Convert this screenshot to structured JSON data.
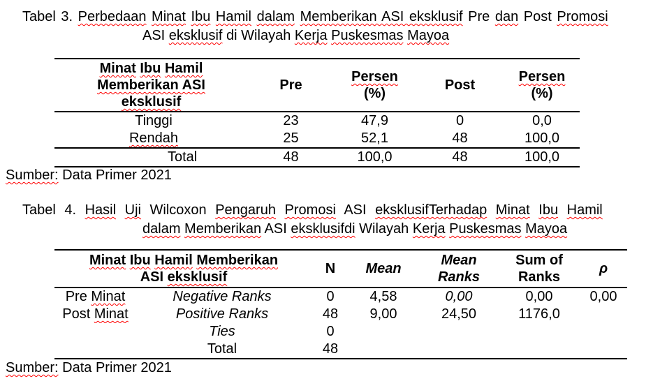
{
  "page": {
    "background": "#ffffff",
    "text_color": "#000000",
    "squiggle_color": "#ff0000"
  },
  "caption_table3": {
    "line1": [
      {
        "t": "Tabel 3. "
      },
      {
        "t": "Perbedaan",
        "sq": true
      },
      {
        "t": " "
      },
      {
        "t": "Minat",
        "sq": true
      },
      {
        "t": " "
      },
      {
        "t": "Ibu",
        "sq": true
      },
      {
        "t": " "
      },
      {
        "t": "Hamil",
        "sq": true
      },
      {
        "t": " "
      },
      {
        "t": "dalam",
        "sq": true
      },
      {
        "t": " "
      },
      {
        "t": "Memberikan ASI eksklusif",
        "sq": true
      },
      {
        "t": " Pre "
      },
      {
        "t": "dan",
        "sq": true
      },
      {
        "t": " Post "
      },
      {
        "t": "Promosi",
        "sq": true
      }
    ],
    "line2": [
      {
        "t": "ASI "
      },
      {
        "t": "eksklusif",
        "sq": true
      },
      {
        "t": " di Wilayah "
      },
      {
        "t": "Kerja",
        "sq": true
      },
      {
        "t": " "
      },
      {
        "t": "Puskesmas",
        "sq": true
      },
      {
        "t": " "
      },
      {
        "t": "Mayoa",
        "sq": true
      }
    ]
  },
  "table3": {
    "header": {
      "col1_line1": [
        {
          "t": "Minat",
          "sq": true
        },
        {
          "t": " "
        },
        {
          "t": "Ibu",
          "sq": true
        },
        {
          "t": " "
        },
        {
          "t": "Hamil",
          "sq": true
        }
      ],
      "col1_line2": [
        {
          "t": "Memberikan ASI",
          "sq": true
        }
      ],
      "col1_line3": [
        {
          "t": "eksklusif",
          "sq": true
        }
      ],
      "pre": "Pre",
      "persen_line1": [
        {
          "t": "Persen",
          "sq": true
        }
      ],
      "persen_line2": "(%)",
      "post": "Post"
    },
    "rows": [
      {
        "label": [
          {
            "t": "Tinggi"
          }
        ],
        "pre": "23",
        "persen_pre": "47,9",
        "post": "0",
        "persen_post": "0,0"
      },
      {
        "label": [
          {
            "t": "Rendah",
            "sq": true
          }
        ],
        "pre": "25",
        "persen_pre": "52,1",
        "post": "48",
        "persen_post": "100,0"
      }
    ],
    "total_row": {
      "label": "Total",
      "pre": "48",
      "persen_pre": "100,0",
      "post": "48",
      "persen_post": "100,0"
    },
    "source": [
      {
        "t": "Sumber:",
        "sq": true
      },
      {
        "t": " Data Primer 2021"
      }
    ]
  },
  "caption_table4": {
    "line1": [
      {
        "t": "Tabel 4. "
      },
      {
        "t": "Hasil",
        "sq": true
      },
      {
        "t": " "
      },
      {
        "t": "Uji",
        "sq": true
      },
      {
        "t": " Wilcoxon "
      },
      {
        "t": "Pengaruh",
        "sq": true
      },
      {
        "t": " "
      },
      {
        "t": "Promosi",
        "sq": true
      },
      {
        "t": " ASI "
      },
      {
        "t": "eksklusifTerhadap",
        "sq": true
      },
      {
        "t": " "
      },
      {
        "t": "Minat",
        "sq": true
      },
      {
        "t": " "
      },
      {
        "t": "Ibu",
        "sq": true
      },
      {
        "t": " "
      },
      {
        "t": "Hamil",
        "sq": true
      }
    ],
    "line2": [
      {
        "t": "dalam",
        "sq": true
      },
      {
        "t": " "
      },
      {
        "t": "Memberikan",
        "sq": true
      },
      {
        "t": " ASI "
      },
      {
        "t": "eksklusifdi",
        "sq": true
      },
      {
        "t": " Wilayah "
      },
      {
        "t": "Kerja",
        "sq": true
      },
      {
        "t": " "
      },
      {
        "t": "Puskesmas",
        "sq": true
      },
      {
        "t": " "
      },
      {
        "t": "Mayoa",
        "sq": true
      }
    ]
  },
  "table4": {
    "header": {
      "col1_line1": [
        {
          "t": "Minat",
          "sq": true
        },
        {
          "t": " "
        },
        {
          "t": "Ibu",
          "sq": true
        },
        {
          "t": " "
        },
        {
          "t": "Hamil",
          "sq": true
        },
        {
          "t": " "
        },
        {
          "t": "Memberikan",
          "sq": true
        }
      ],
      "col1_line2": [
        {
          "t": "ASI "
        },
        {
          "t": "eksklusif",
          "sq": true
        }
      ],
      "n": "N",
      "mean": "Mean",
      "mean_ranks_line1": "Mean",
      "mean_ranks_line2": "Ranks",
      "sum_of_ranks_line1": "Sum of",
      "sum_of_ranks_line2": "Ranks",
      "rho": "ρ"
    },
    "rows": [
      {
        "group": [
          {
            "t": "Pre "
          },
          {
            "t": "Minat",
            "sq": true
          }
        ],
        "rank_label": "Negative Ranks",
        "n": "0",
        "mean": "4,58",
        "mean_ranks": "0,00",
        "sum_of_ranks": "0,00",
        "rho": "0,00"
      },
      {
        "group": [
          {
            "t": "Post "
          },
          {
            "t": "Minat",
            "sq": true
          }
        ],
        "rank_label": "Positive Ranks",
        "n": "48",
        "mean": "9,00",
        "mean_ranks": "24,50",
        "sum_of_ranks": "1176,0",
        "rho": ""
      },
      {
        "group": [],
        "rank_label": "Ties",
        "n": "0",
        "mean": "",
        "mean_ranks": "",
        "sum_of_ranks": "",
        "rho": ""
      },
      {
        "group": [],
        "rank_label": "Total",
        "n": "48",
        "mean": "",
        "mean_ranks": "",
        "sum_of_ranks": "",
        "rho": ""
      }
    ],
    "source": [
      {
        "t": "Sumber:",
        "sq": true
      },
      {
        "t": " Data Primer 2021"
      }
    ]
  }
}
